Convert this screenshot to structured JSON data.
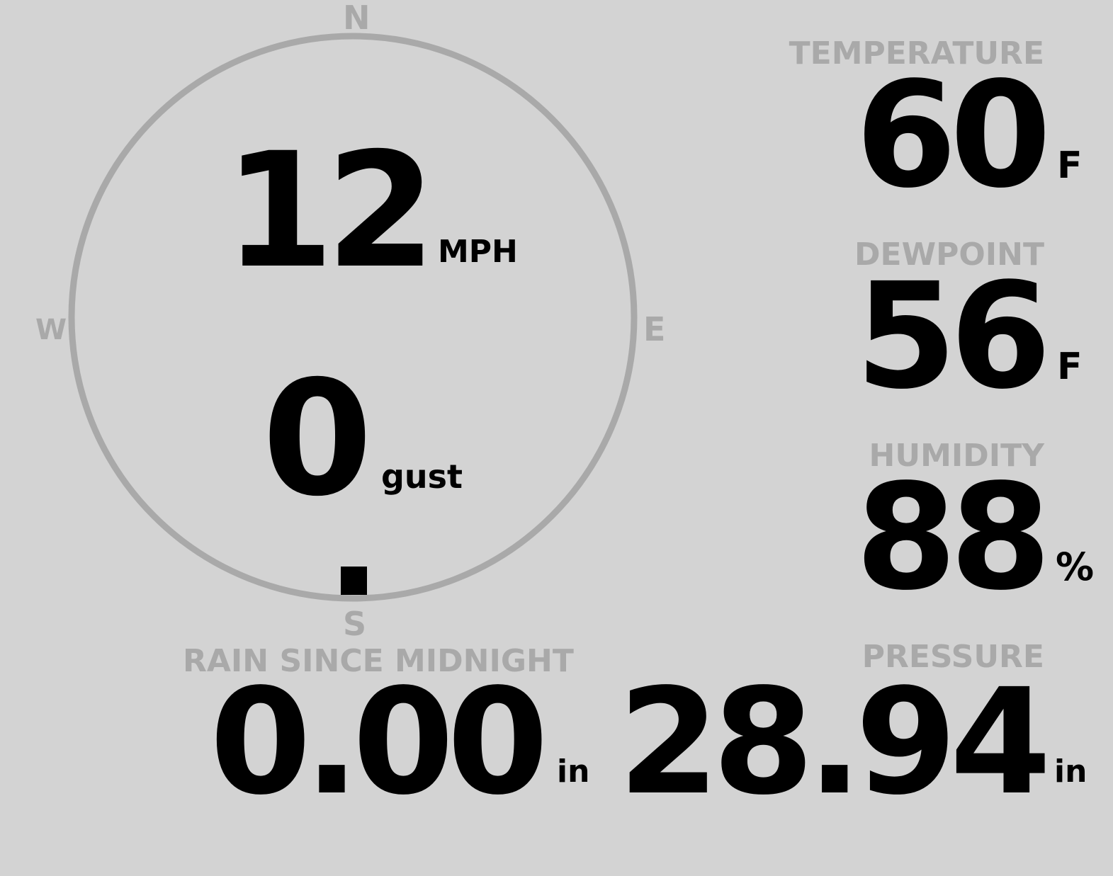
{
  "wind": {
    "speed": "12",
    "speed_unit": "MPH",
    "gust": "0",
    "gust_unit": "gust",
    "direction": "S",
    "compass": {
      "n": "N",
      "e": "E",
      "s": "S",
      "w": "W"
    }
  },
  "temperature": {
    "label": "TEMPERATURE",
    "value": "60",
    "unit": "F"
  },
  "dewpoint": {
    "label": "DEWPOINT",
    "value": "56",
    "unit": "F"
  },
  "humidity": {
    "label": "HUMIDITY",
    "value": "88",
    "unit": "%"
  },
  "rain": {
    "label": "RAIN SINCE MIDNIGHT",
    "value": "0.00",
    "unit": "in"
  },
  "pressure": {
    "label": "PRESSURE",
    "value": "28.94",
    "unit": "in"
  }
}
